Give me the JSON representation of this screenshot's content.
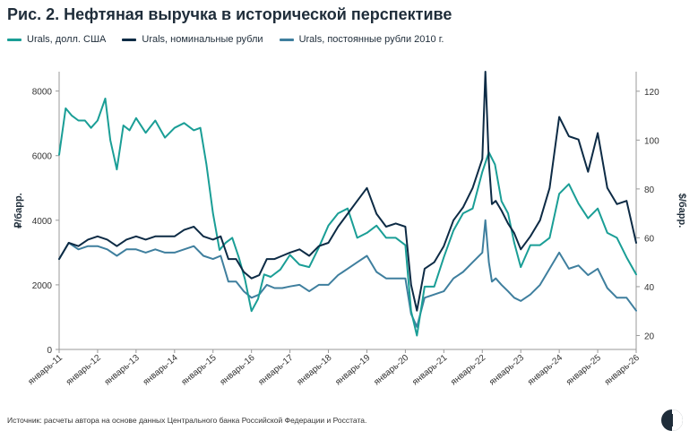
{
  "title": "Рис. 2. Нефтяная выручка в исторической перспективе",
  "source": "Источник: расчеты автора на основе данных Центрального банка Российской Федерации и Росстата.",
  "colors": {
    "usd": "#1a9e96",
    "nominal": "#0d2b45",
    "constant": "#3f7f9e",
    "axis": "#999999",
    "text": "#333333"
  },
  "chart_data": {
    "type": "line",
    "title": "Рис. 2. Нефтяная выручка в исторической перспективе",
    "ylabel_left": "₽/барр.",
    "ylabel_right": "$/барр.",
    "ylim_left": [
      0,
      8600
    ],
    "ylim_right": [
      14.3,
      128
    ],
    "yticks_left": [
      0,
      2000,
      4000,
      6000,
      8000
    ],
    "yticks_right": [
      20,
      40,
      60,
      80,
      100,
      120
    ],
    "xlim": [
      2011.0,
      2026.0
    ],
    "xtick_labels": [
      "январь-11",
      "январь-12",
      "январь-13",
      "январь-14",
      "январь-15",
      "январь-16",
      "январь-17",
      "январь-18",
      "январь-19",
      "январь-20",
      "январь-21",
      "январь-22",
      "январь-23",
      "январь-24",
      "январь-25",
      "январь-26"
    ],
    "legend_position": "top",
    "grid": false,
    "series": [
      {
        "name": "Urals, долл. США",
        "axis": "right",
        "x": [
          2011.0,
          2011.17,
          2011.33,
          2011.5,
          2011.67,
          2011.83,
          2012.0,
          2012.2,
          2012.33,
          2012.5,
          2012.67,
          2012.83,
          2013.0,
          2013.25,
          2013.5,
          2013.75,
          2014.0,
          2014.25,
          2014.5,
          2014.67,
          2014.83,
          2015.0,
          2015.17,
          2015.33,
          2015.5,
          2015.67,
          2015.83,
          2016.0,
          2016.17,
          2016.33,
          2016.5,
          2016.75,
          2017.0,
          2017.25,
          2017.5,
          2017.75,
          2018.0,
          2018.25,
          2018.5,
          2018.75,
          2019.0,
          2019.25,
          2019.5,
          2019.75,
          2020.0,
          2020.15,
          2020.3,
          2020.5,
          2020.75,
          2021.0,
          2021.25,
          2021.5,
          2021.75,
          2022.0,
          2022.17,
          2022.33,
          2022.5,
          2022.67,
          2022.83,
          2023.0,
          2023.25,
          2023.5,
          2023.75,
          2024.0,
          2024.25,
          2024.5,
          2024.75,
          2025.0,
          2025.25,
          2025.5,
          2025.75,
          2026.0
        ],
        "values": [
          94,
          113,
          110,
          108,
          108,
          105,
          108,
          117,
          100,
          88,
          106,
          104,
          109,
          103,
          108,
          101,
          105,
          107,
          104,
          105,
          90,
          70,
          55,
          58,
          60,
          52,
          43,
          30,
          35,
          45,
          44,
          47,
          53,
          49,
          48,
          56,
          65,
          70,
          72,
          60,
          62,
          65,
          60,
          60,
          57,
          30,
          20,
          40,
          40,
          52,
          63,
          70,
          72,
          87,
          95,
          90,
          75,
          70,
          58,
          48,
          57,
          57,
          60,
          78,
          82,
          74,
          68,
          72,
          62,
          60,
          52,
          45
        ]
      },
      {
        "name": "Urals, номинальные рубли",
        "axis": "left",
        "x": [
          2011.0,
          2011.25,
          2011.5,
          2011.75,
          2012.0,
          2012.25,
          2012.5,
          2012.75,
          2013.0,
          2013.25,
          2013.5,
          2013.75,
          2014.0,
          2014.25,
          2014.5,
          2014.75,
          2015.0,
          2015.2,
          2015.4,
          2015.6,
          2015.8,
          2016.0,
          2016.2,
          2016.4,
          2016.6,
          2016.8,
          2017.0,
          2017.25,
          2017.5,
          2017.75,
          2018.0,
          2018.25,
          2018.5,
          2018.75,
          2019.0,
          2019.25,
          2019.5,
          2019.75,
          2020.0,
          2020.15,
          2020.3,
          2020.5,
          2020.75,
          2021.0,
          2021.25,
          2021.5,
          2021.75,
          2022.0,
          2022.08,
          2022.17,
          2022.25,
          2022.35,
          2022.5,
          2022.67,
          2022.83,
          2023.0,
          2023.25,
          2023.5,
          2023.75,
          2024.0,
          2024.25,
          2024.5,
          2024.75,
          2025.0,
          2025.25,
          2025.5,
          2025.75,
          2026.0
        ],
        "values": [
          2800,
          3300,
          3200,
          3400,
          3500,
          3400,
          3200,
          3400,
          3500,
          3400,
          3500,
          3500,
          3500,
          3700,
          3800,
          3500,
          3400,
          3500,
          2800,
          2800,
          2400,
          2200,
          2300,
          2800,
          2800,
          2900,
          3000,
          3100,
          2900,
          3200,
          3300,
          3800,
          4200,
          4600,
          5000,
          4200,
          3800,
          3900,
          3800,
          2000,
          1200,
          2500,
          2700,
          3200,
          4000,
          4400,
          5000,
          5900,
          8600,
          5800,
          4500,
          4600,
          4300,
          3900,
          3600,
          3100,
          3500,
          4000,
          5000,
          7200,
          6600,
          6500,
          5500,
          6700,
          5000,
          4500,
          4600,
          3300
        ]
      },
      {
        "name": "Urals, постоянные рубли 2010 г.",
        "axis": "left",
        "x": [
          2011.0,
          2011.25,
          2011.5,
          2011.75,
          2012.0,
          2012.25,
          2012.5,
          2012.75,
          2013.0,
          2013.25,
          2013.5,
          2013.75,
          2014.0,
          2014.25,
          2014.5,
          2014.75,
          2015.0,
          2015.2,
          2015.4,
          2015.6,
          2015.8,
          2016.0,
          2016.2,
          2016.4,
          2016.6,
          2016.8,
          2017.0,
          2017.25,
          2017.5,
          2017.75,
          2018.0,
          2018.25,
          2018.5,
          2018.75,
          2019.0,
          2019.25,
          2019.5,
          2019.75,
          2020.0,
          2020.15,
          2020.3,
          2020.5,
          2020.75,
          2021.0,
          2021.25,
          2021.5,
          2021.75,
          2022.0,
          2022.08,
          2022.17,
          2022.25,
          2022.35,
          2022.5,
          2022.67,
          2022.83,
          2023.0,
          2023.25,
          2023.5,
          2023.75,
          2024.0,
          2024.25,
          2024.5,
          2024.75,
          2025.0,
          2025.25,
          2025.5,
          2025.75,
          2026.0
        ],
        "values": [
          2800,
          3300,
          3100,
          3200,
          3200,
          3100,
          2900,
          3100,
          3100,
          3000,
          3100,
          3000,
          3000,
          3100,
          3200,
          2900,
          2800,
          2900,
          2100,
          2100,
          1800,
          1600,
          1700,
          2000,
          1900,
          1900,
          1950,
          2000,
          1800,
          2000,
          2000,
          2300,
          2500,
          2700,
          2900,
          2400,
          2200,
          2200,
          2200,
          1100,
          700,
          1600,
          1700,
          1800,
          2200,
          2400,
          2700,
          3000,
          4000,
          2700,
          2100,
          2200,
          2000,
          1800,
          1600,
          1500,
          1700,
          2000,
          2500,
          3000,
          2500,
          2600,
          2300,
          2500,
          1900,
          1600,
          1600,
          1200
        ]
      }
    ]
  }
}
